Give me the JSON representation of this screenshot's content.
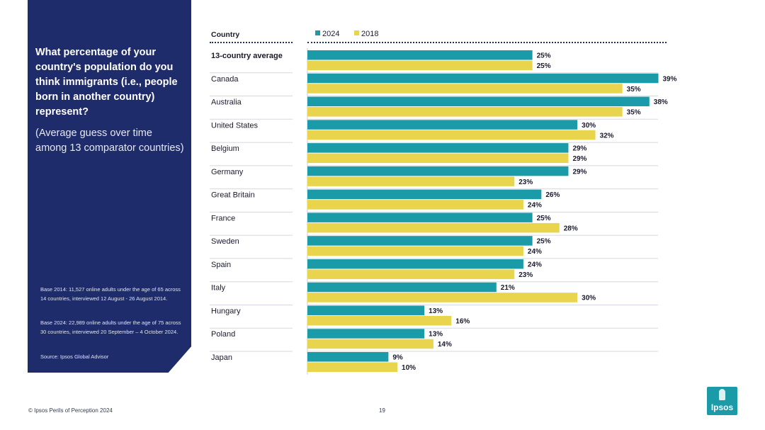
{
  "panel": {
    "question": "What percentage of your country's population do you think immigrants (i.e., people born in another country) represent?",
    "subtitle": "(Average guess over time among 13 comparator countries)",
    "base_2014": "Base 2014: 11,527 online adults under the age of 65 across 14 countries, interviewed 12 August - 26 August 2014.",
    "base_2024": "Base 2024: 22,989 online adults under the age of 75 across 30 countries, interviewed 20 September – 4 October 2024.",
    "source": "Source: Ipsos Global Advisor"
  },
  "footer": {
    "copyright": "© Ipsos Perils of Perception 2024",
    "page_number": "19",
    "logo_text": "Ipsos"
  },
  "colors": {
    "series_2024": "#1b9aa8",
    "series_2018": "#e8d44d",
    "panel": "#1f2c6b"
  },
  "chart_data": {
    "type": "bar",
    "orientation": "horizontal",
    "column_header": "Country",
    "categories": [
      "13-country average",
      "Canada",
      "Australia",
      "United States",
      "Belgium",
      "Germany",
      "Great Britain",
      "France",
      "Sweden",
      "Spain",
      "Italy",
      "Hungary",
      "Poland",
      "Japan"
    ],
    "series": [
      {
        "name": "2024",
        "values": [
          25,
          39,
          38,
          30,
          29,
          29,
          26,
          25,
          25,
          24,
          21,
          13,
          13,
          9
        ]
      },
      {
        "name": "2018",
        "values": [
          25,
          35,
          35,
          32,
          29,
          23,
          24,
          28,
          24,
          23,
          30,
          16,
          14,
          10
        ]
      }
    ],
    "value_suffix": "%",
    "xlim": [
      0,
      40
    ],
    "legend_position": "top"
  }
}
